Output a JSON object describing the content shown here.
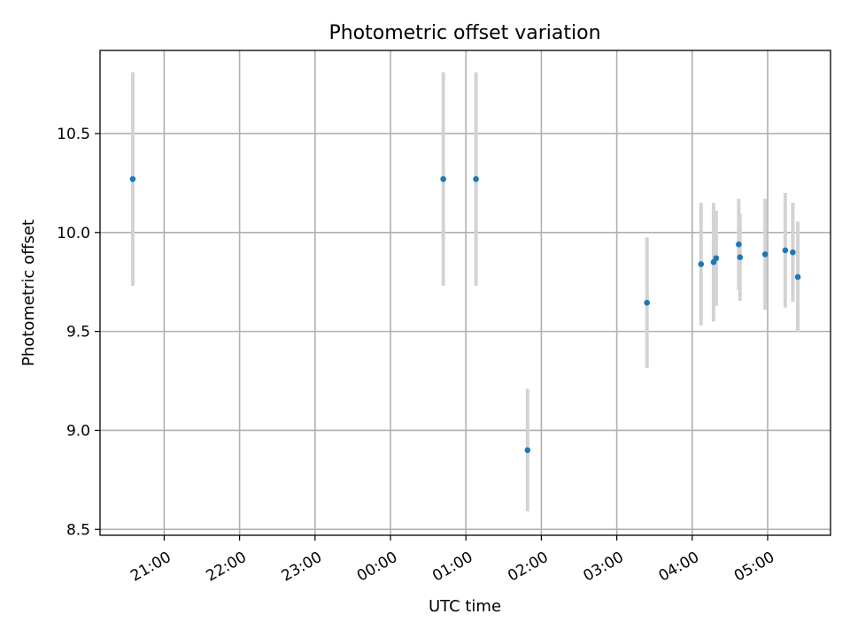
{
  "chart_data": {
    "type": "scatter",
    "title": "Photometric offset variation",
    "xlabel": "UTC time",
    "ylabel": "Photometric offset",
    "xaxis": {
      "type": "time",
      "range": [
        "2024-01-01T20:09:00",
        "2024-01-02T05:50:00"
      ],
      "ticks": [
        {
          "t": "2024-01-01T21:00:00",
          "label": "21:00"
        },
        {
          "t": "2024-01-01T22:00:00",
          "label": "22:00"
        },
        {
          "t": "2024-01-01T23:00:00",
          "label": "23:00"
        },
        {
          "t": "2024-01-02T00:00:00",
          "label": "00:00"
        },
        {
          "t": "2024-01-02T01:00:00",
          "label": "01:00"
        },
        {
          "t": "2024-01-02T02:00:00",
          "label": "02:00"
        },
        {
          "t": "2024-01-02T03:00:00",
          "label": "03:00"
        },
        {
          "t": "2024-01-02T04:00:00",
          "label": "04:00"
        },
        {
          "t": "2024-01-02T05:00:00",
          "label": "05:00"
        }
      ]
    },
    "ylim": [
      8.47,
      10.92
    ],
    "yticks": [
      {
        "v": 8.5,
        "label": "8.5"
      },
      {
        "v": 9.0,
        "label": "9.0"
      },
      {
        "v": 9.5,
        "label": "9.5"
      },
      {
        "v": 10.0,
        "label": "10.0"
      },
      {
        "v": 10.5,
        "label": "10.5"
      }
    ],
    "grid": true,
    "marker_color": "#1f77b4",
    "errorbar_color": "#d3d3d3",
    "points": [
      {
        "t": "2024-01-01T20:35:00",
        "y": 10.27,
        "err": 0.54
      },
      {
        "t": "2024-01-02T00:42:00",
        "y": 10.27,
        "err": 0.54
      },
      {
        "t": "2024-01-02T01:08:00",
        "y": 10.27,
        "err": 0.54
      },
      {
        "t": "2024-01-02T01:49:00",
        "y": 8.9,
        "err": 0.31
      },
      {
        "t": "2024-01-02T03:24:00",
        "y": 9.645,
        "err": 0.33
      },
      {
        "t": "2024-01-02T04:07:00",
        "y": 9.84,
        "err": 0.31
      },
      {
        "t": "2024-01-02T04:17:00",
        "y": 9.85,
        "err": 0.3
      },
      {
        "t": "2024-01-02T04:19:00",
        "y": 9.87,
        "err": 0.24
      },
      {
        "t": "2024-01-02T04:37:00",
        "y": 9.94,
        "err": 0.23
      },
      {
        "t": "2024-01-02T04:38:00",
        "y": 9.875,
        "err": 0.22
      },
      {
        "t": "2024-01-02T04:58:00",
        "y": 9.89,
        "err": 0.28
      },
      {
        "t": "2024-01-02T05:14:00",
        "y": 9.91,
        "err": 0.29
      },
      {
        "t": "2024-01-02T05:20:00",
        "y": 9.9,
        "err": 0.25
      },
      {
        "t": "2024-01-02T05:24:00",
        "y": 9.775,
        "err": 0.28
      }
    ]
  }
}
